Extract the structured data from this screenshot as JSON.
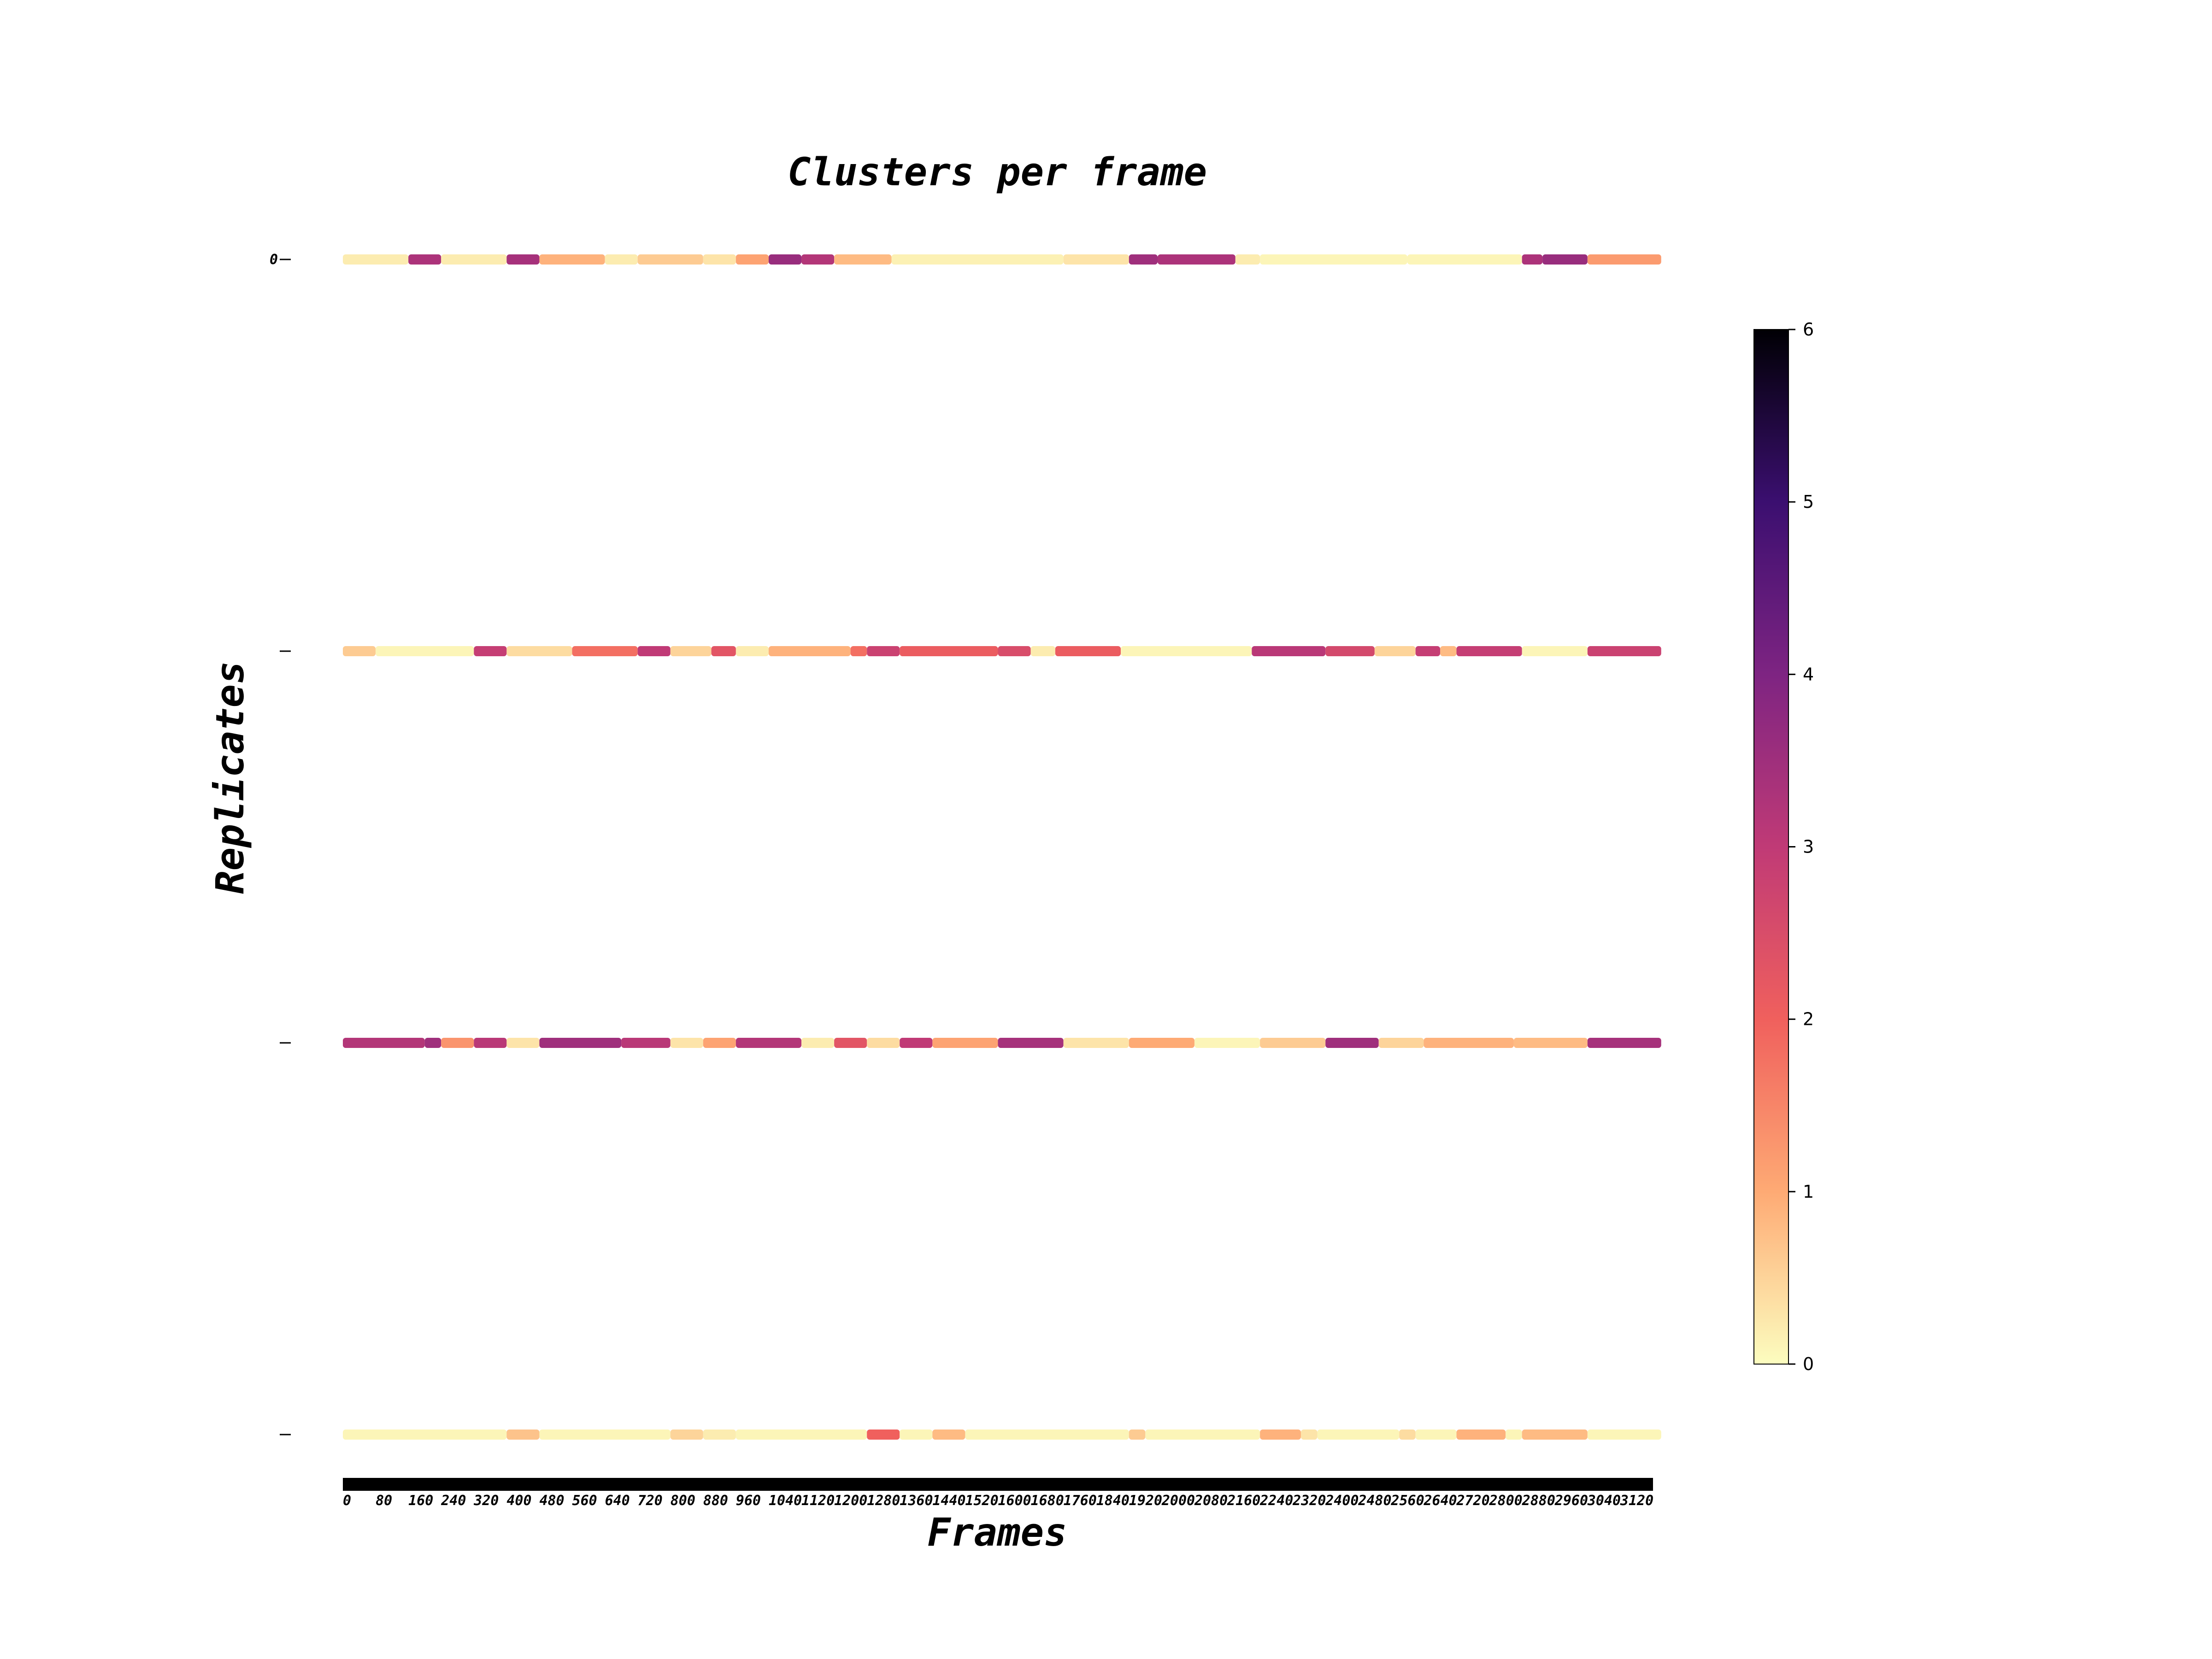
{
  "chart_data": {
    "type": "heatmap",
    "title": "Clusters per frame",
    "xlabel": "Frames",
    "ylabel": "Replicates",
    "xticks": [
      "0",
      "80",
      "160",
      "240",
      "320",
      "400",
      "480",
      "560",
      "640",
      "720",
      "800",
      "880",
      "960",
      "1040",
      "1120",
      "1200",
      "1280",
      "1360",
      "1440",
      "1520",
      "1600",
      "1680",
      "1760",
      "1840",
      "1920",
      "2000",
      "2080",
      "2160",
      "2240",
      "2320",
      "2400",
      "2480",
      "2560",
      "2640",
      "2720",
      "2800",
      "2880",
      "2960",
      "3040",
      "3120"
    ],
    "xlim": [
      0,
      3200
    ],
    "yticks": [
      "0",
      "",
      "",
      ""
    ],
    "colormap": "magma_r",
    "colorbar": {
      "min": 0,
      "max": 6,
      "ticks": [
        "0",
        "1",
        "2",
        "3",
        "4",
        "5",
        "6"
      ]
    },
    "replicates": [
      {
        "segments": [
          [
            0,
            160,
            0.2
          ],
          [
            160,
            240,
            3.3
          ],
          [
            240,
            400,
            0.2
          ],
          [
            400,
            480,
            3.4
          ],
          [
            480,
            640,
            0.9
          ],
          [
            640,
            720,
            0.2
          ],
          [
            720,
            880,
            0.6
          ],
          [
            880,
            960,
            0.3
          ],
          [
            960,
            1040,
            1.1
          ],
          [
            1040,
            1120,
            3.6
          ],
          [
            1120,
            1200,
            3.2
          ],
          [
            1200,
            1340,
            0.8
          ],
          [
            1340,
            1760,
            0.15
          ],
          [
            1760,
            1920,
            0.3
          ],
          [
            1920,
            1990,
            3.5
          ],
          [
            1990,
            2180,
            3.3
          ],
          [
            2180,
            2240,
            0.2
          ],
          [
            2240,
            2600,
            0.1
          ],
          [
            2600,
            2880,
            0.1
          ],
          [
            2880,
            2930,
            3.3
          ],
          [
            2930,
            3040,
            3.6
          ],
          [
            3040,
            3220,
            1.2
          ]
        ]
      },
      {
        "segments": [
          [
            0,
            80,
            0.6
          ],
          [
            80,
            320,
            0.1
          ],
          [
            320,
            400,
            2.9
          ],
          [
            400,
            560,
            0.4
          ],
          [
            560,
            720,
            1.8
          ],
          [
            720,
            800,
            3.0
          ],
          [
            800,
            900,
            0.5
          ],
          [
            900,
            960,
            2.3
          ],
          [
            960,
            1040,
            0.2
          ],
          [
            1040,
            1240,
            0.9
          ],
          [
            1240,
            1280,
            1.8
          ],
          [
            1280,
            1360,
            2.8
          ],
          [
            1360,
            1600,
            2.1
          ],
          [
            1600,
            1680,
            2.5
          ],
          [
            1680,
            1740,
            0.2
          ],
          [
            1740,
            1900,
            2.1
          ],
          [
            1900,
            2220,
            0.1
          ],
          [
            2220,
            2400,
            3.1
          ],
          [
            2400,
            2520,
            2.6
          ],
          [
            2520,
            2620,
            0.5
          ],
          [
            2620,
            2680,
            2.9
          ],
          [
            2680,
            2720,
            0.8
          ],
          [
            2720,
            2880,
            2.9
          ],
          [
            2880,
            3040,
            0.1
          ],
          [
            3040,
            3220,
            2.8
          ]
        ]
      },
      {
        "segments": [
          [
            0,
            200,
            3.2
          ],
          [
            200,
            240,
            3.5
          ],
          [
            240,
            320,
            1.3
          ],
          [
            320,
            400,
            3.1
          ],
          [
            400,
            480,
            0.3
          ],
          [
            480,
            680,
            3.5
          ],
          [
            680,
            800,
            3.1
          ],
          [
            800,
            880,
            0.3
          ],
          [
            880,
            960,
            1.1
          ],
          [
            960,
            1120,
            3.2
          ],
          [
            1120,
            1200,
            0.2
          ],
          [
            1200,
            1280,
            2.3
          ],
          [
            1280,
            1360,
            0.4
          ],
          [
            1360,
            1440,
            3.0
          ],
          [
            1440,
            1600,
            1.1
          ],
          [
            1600,
            1760,
            3.4
          ],
          [
            1760,
            1920,
            0.3
          ],
          [
            1920,
            2080,
            1.0
          ],
          [
            2080,
            2240,
            0.1
          ],
          [
            2240,
            2400,
            0.6
          ],
          [
            2400,
            2530,
            3.5
          ],
          [
            2530,
            2640,
            0.5
          ],
          [
            2640,
            2860,
            0.9
          ],
          [
            2860,
            3040,
            0.8
          ],
          [
            3040,
            3220,
            3.4
          ]
        ]
      },
      {
        "segments": [
          [
            0,
            400,
            0.1
          ],
          [
            400,
            480,
            0.7
          ],
          [
            480,
            800,
            0.1
          ],
          [
            800,
            880,
            0.5
          ],
          [
            880,
            960,
            0.2
          ],
          [
            960,
            1280,
            0.1
          ],
          [
            1280,
            1360,
            2.0
          ],
          [
            1360,
            1440,
            0.1
          ],
          [
            1440,
            1520,
            0.8
          ],
          [
            1520,
            1920,
            0.1
          ],
          [
            1920,
            1960,
            0.6
          ],
          [
            1960,
            2240,
            0.1
          ],
          [
            2240,
            2340,
            0.9
          ],
          [
            2340,
            2380,
            0.3
          ],
          [
            2380,
            2580,
            0.1
          ],
          [
            2580,
            2620,
            0.4
          ],
          [
            2620,
            2720,
            0.1
          ],
          [
            2720,
            2840,
            0.9
          ],
          [
            2840,
            2880,
            0.1
          ],
          [
            2880,
            3040,
            0.8
          ],
          [
            3040,
            3220,
            0.1
          ]
        ]
      }
    ]
  }
}
